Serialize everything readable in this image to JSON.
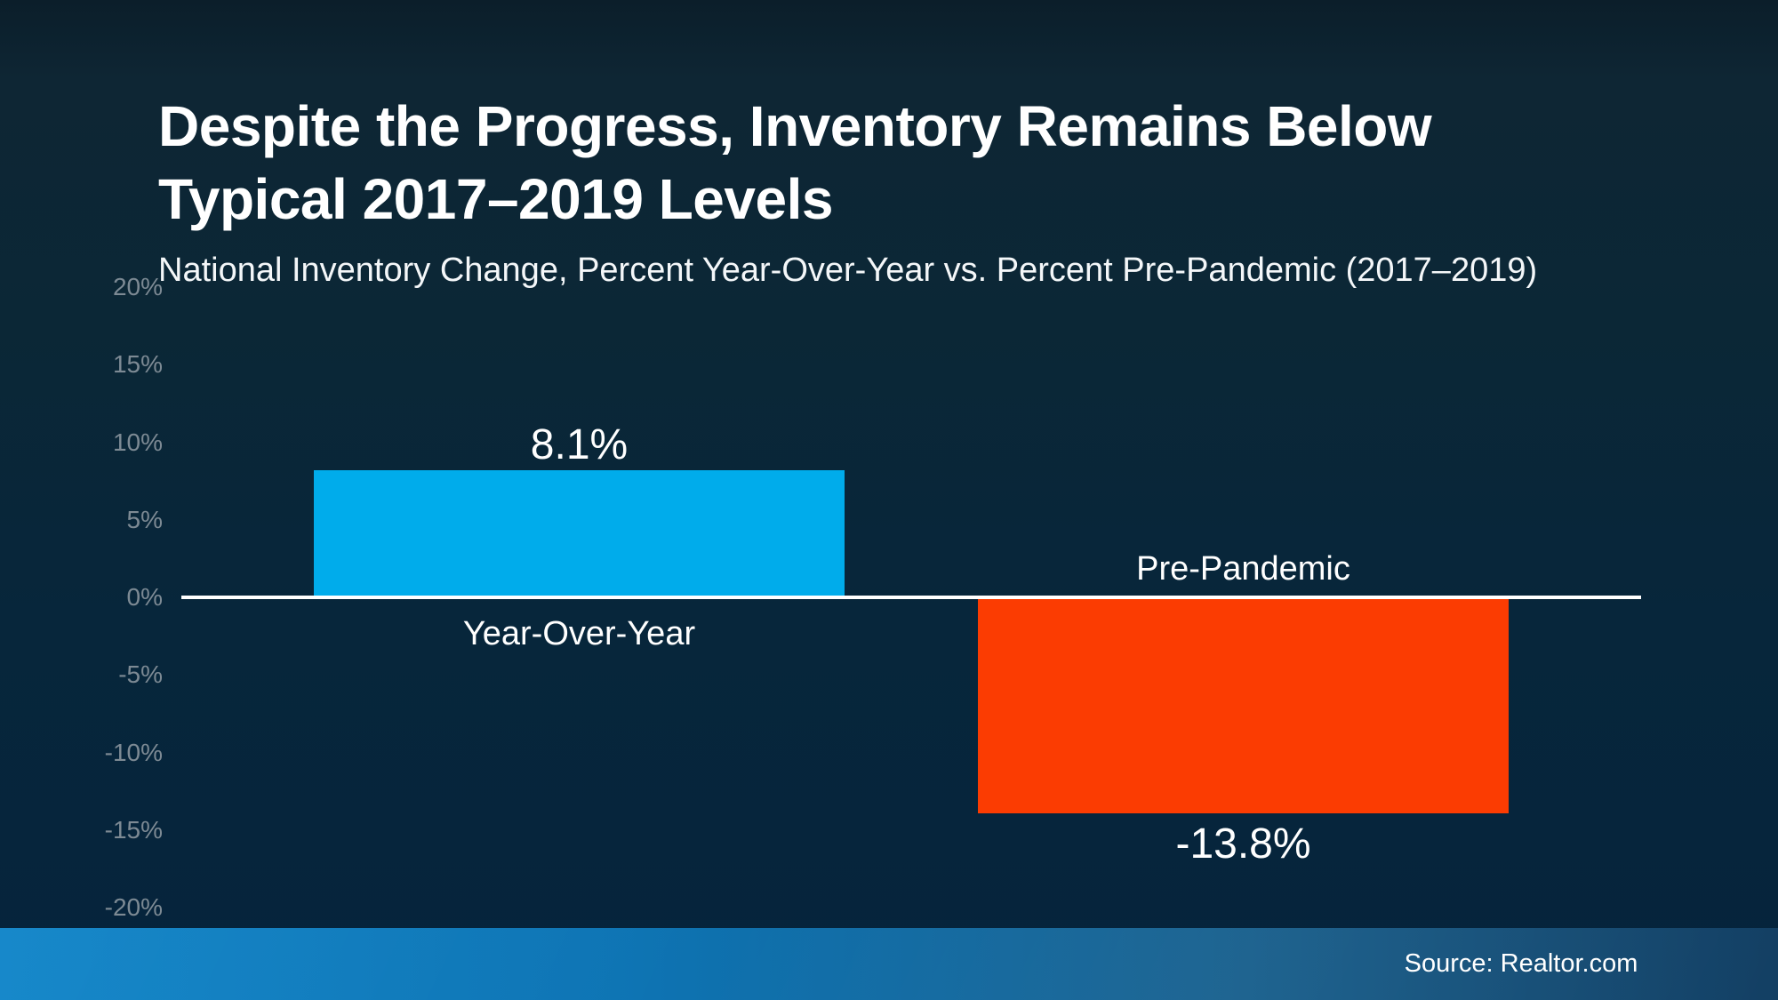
{
  "slide": {
    "title_line1": "Despite the Progress, Inventory Remains Below",
    "title_line2": "Typical 2017–2019 Levels",
    "subtitle": "National Inventory Change, Percent Year-Over-Year vs. Percent Pre-Pandemic (2017–2019)",
    "source": "Source: Realtor.com"
  },
  "colors": {
    "background_top": "#0e2634",
    "background_bottom": "#05243c",
    "positive_bar": "#00aceb",
    "negative_bar": "#fb3c02",
    "zero_line": "#ffffff",
    "axis_tick_label": "#7d8a94",
    "footer_gradient_left": "#0b82c7",
    "footer_gradient_right": "#133f63",
    "text": "#ffffff"
  },
  "chart_data": {
    "type": "bar",
    "title": "Despite the Progress, Inventory Remains Below Typical 2017–2019 Levels",
    "subtitle": "National Inventory Change, Percent Year-Over-Year vs. Percent Pre-Pandemic (2017–2019)",
    "categories": [
      "Year-Over-Year",
      "Pre-Pandemic"
    ],
    "values": [
      8.1,
      -13.8
    ],
    "value_labels": [
      "8.1%",
      "-13.8%"
    ],
    "bar_colors": [
      "#00aceb",
      "#fb3c02"
    ],
    "ylabel": "",
    "xlabel": "",
    "ylim": [
      -20,
      20
    ],
    "ytick_step": 5,
    "yticks": [
      20,
      15,
      10,
      5,
      0,
      -5,
      -10,
      -15,
      -20
    ],
    "ytick_labels": [
      "20%",
      "15%",
      "10%",
      "5%",
      "0%",
      "-5%",
      "-10%",
      "-15%",
      "-20%"
    ],
    "grid": false,
    "legend": "none",
    "zero_baseline": true,
    "source": "Source: Realtor.com"
  }
}
